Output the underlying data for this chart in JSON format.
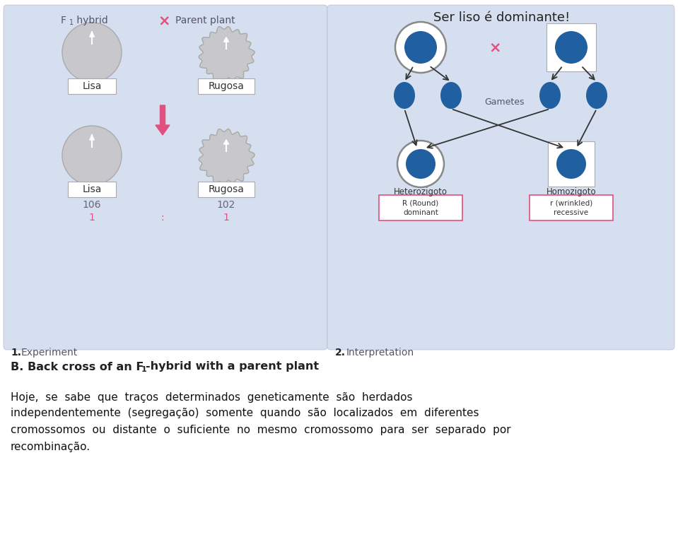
{
  "bg_color": "#ffffff",
  "panel_bg": "#d6dff0",
  "blue_fill": "#2060a0",
  "pink_color": "#e05080",
  "gray_fill": "#c8c8cc",
  "panel2_title": "Ser liso é dominante!",
  "label_lisa": "Lisa",
  "label_rugosa": "Rugosa",
  "label_106": "106",
  "label_102": "102",
  "label_gametes": "Gametes",
  "label_heterozigoto": "Heterozigoto",
  "label_homozigoto": "Homozigoto",
  "label_round": "R (Round)\ndominant",
  "label_wrinkled": "r (wrinkled)\nrecessive",
  "paragraph_lines": [
    "Hoje,  se  sabe  que  traços  determinados  geneticamente  são  herdados",
    "independentemente  (segregação)  somente  quando  são  localizados  em  diferentes",
    "cromossomos  ou  distante  o  suficiente  no  mesmo  cromossomo  para  ser  separado  por",
    "recombinação."
  ]
}
